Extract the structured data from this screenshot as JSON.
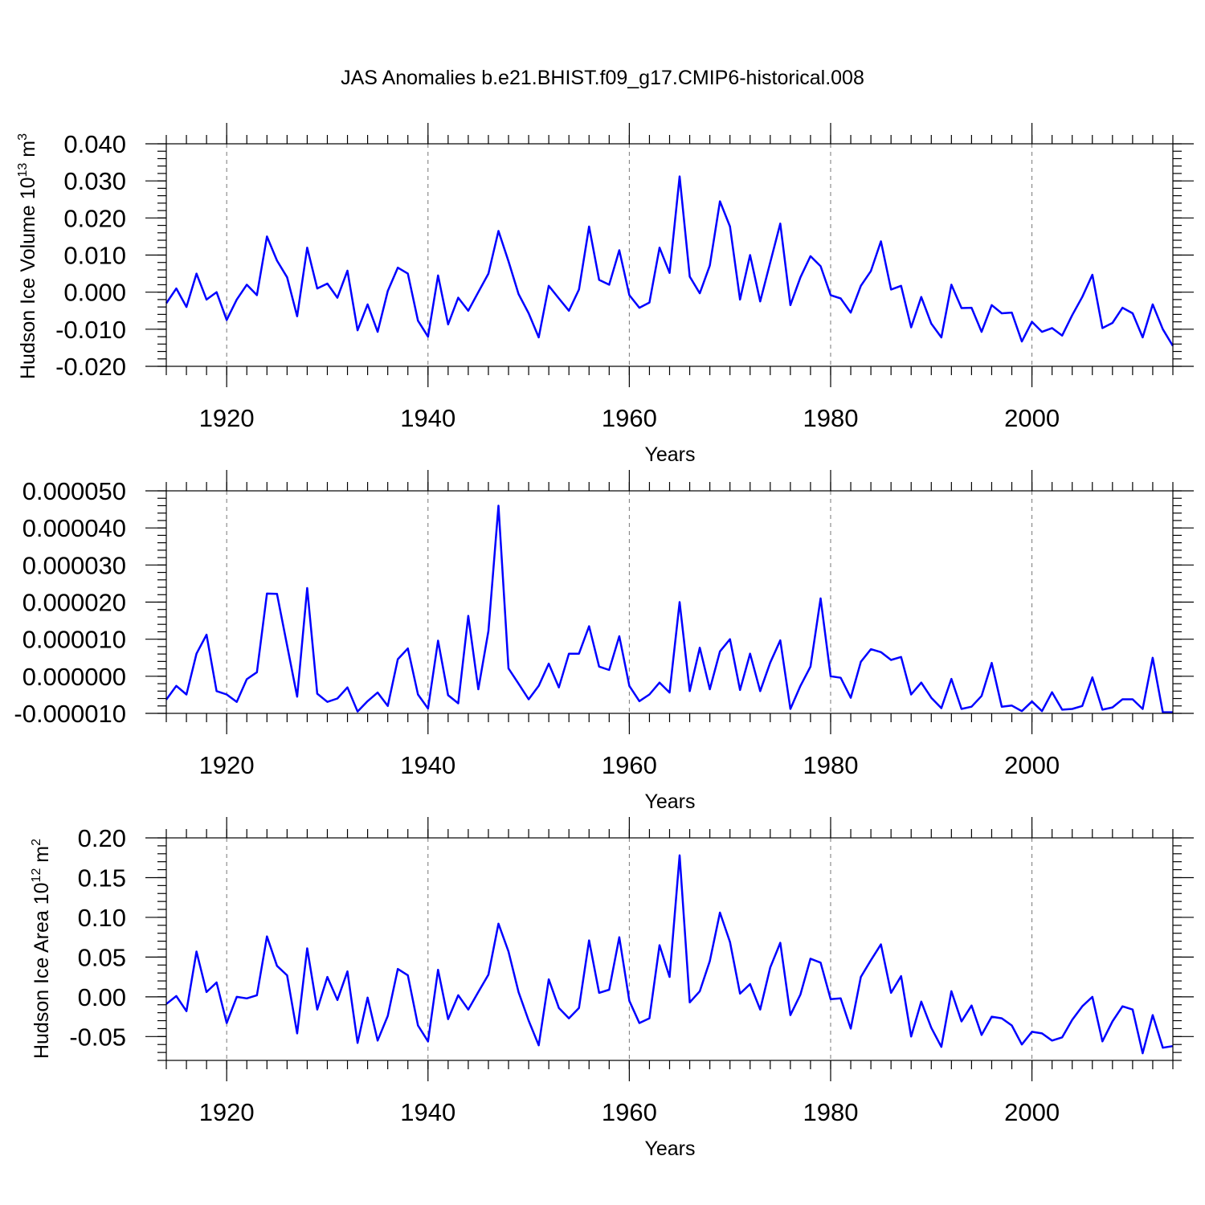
{
  "chart_data": [
    {
      "type": "line",
      "title": "JAS Anomalies b.e21.BHIST.f09_g17.CMIP6-historical.008",
      "ylabel": "Hudson Ice Volume 10",
      "ylabel_exp": "13",
      "ylabel_unit": " m",
      "ylabel_unit_exp": "3",
      "xlabel": "Years",
      "xlim": [
        1914,
        2014
      ],
      "ylim": [
        -0.02,
        0.04
      ],
      "yticks": [
        -0.02,
        -0.01,
        0.0,
        0.01,
        0.02,
        0.03,
        0.04
      ],
      "ytick_labels": [
        "-0.020",
        "-0.010",
        "0.000",
        "0.010",
        "0.020",
        "0.030",
        "0.040"
      ],
      "xticks": [
        1920,
        1940,
        1960,
        1980,
        2000
      ],
      "xtick_labels": [
        "1920",
        "1940",
        "1960",
        "1980",
        "2000"
      ],
      "grid": "dashed vertical at major x ticks",
      "color": "#0000ff",
      "series": [
        {
          "name": "Hudson Ice Volume",
          "x_start": 1914,
          "values": [
            -0.003,
            0.001,
            -0.004,
            0.005,
            -0.002,
            0.0,
            -0.0075,
            -0.002,
            0.002,
            -0.0008,
            0.015,
            0.0085,
            0.004,
            -0.0065,
            0.012,
            0.001,
            0.0023,
            -0.0015,
            0.0058,
            -0.0103,
            -0.0033,
            -0.0107,
            0.0003,
            0.0066,
            0.005,
            -0.0077,
            -0.012,
            0.0045,
            -0.0087,
            -0.0015,
            -0.005,
            0.0,
            0.005,
            0.0165,
            0.0083,
            -0.0005,
            -0.0057,
            -0.0122,
            0.0017,
            -0.0017,
            -0.005,
            0.0007,
            0.0177,
            0.0033,
            0.002,
            0.0113,
            -0.0008,
            -0.0042,
            -0.0028,
            0.012,
            0.0052,
            0.0312,
            0.0042,
            -0.0003,
            0.0072,
            0.0245,
            0.0177,
            -0.002,
            0.01,
            -0.0025,
            0.008,
            0.0185,
            -0.0035,
            0.004,
            0.0097,
            0.007,
            -0.0008,
            -0.0017,
            -0.0055,
            0.0017,
            0.0057,
            0.0137,
            0.0007,
            0.0017,
            -0.0095,
            -0.0013,
            -0.0085,
            -0.0122,
            0.002,
            -0.0043,
            -0.0042,
            -0.0107,
            -0.0035,
            -0.0057,
            -0.0055,
            -0.0133,
            -0.008,
            -0.0107,
            -0.0097,
            -0.0117,
            -0.0062,
            -0.0013,
            0.0047,
            -0.0097,
            -0.0083,
            -0.0042,
            -0.0057,
            -0.0122,
            -0.0033,
            -0.01,
            -0.0145
          ]
        }
      ]
    },
    {
      "type": "line",
      "ylabel": "",
      "xlabel": "Years",
      "xlim": [
        1914,
        2014
      ],
      "ylim": [
        -1e-05,
        5e-05
      ],
      "yticks": [
        -1e-05,
        0.0,
        1e-05,
        2e-05,
        3e-05,
        4e-05,
        5e-05
      ],
      "ytick_labels": [
        "-0.000010",
        "0.000000",
        "0.000010",
        "0.000020",
        "0.000030",
        "0.000040",
        "0.000050"
      ],
      "xticks": [
        1920,
        1940,
        1960,
        1980,
        2000
      ],
      "xtick_labels": [
        "1920",
        "1940",
        "1960",
        "1980",
        "2000"
      ],
      "grid": "dashed vertical at major x ticks",
      "color": "#0000ff",
      "series": [
        {
          "name": "anomaly",
          "x_start": 1914,
          "values": [
            -6.3e-06,
            -2.6e-06,
            -4.9e-06,
            6.1e-06,
            1.12e-05,
            -4e-06,
            -4.9e-06,
            -6.9e-06,
            -8e-07,
            1.1e-06,
            2.23e-05,
            2.22e-05,
            8.3e-06,
            -5.5e-06,
            2.38e-05,
            -4.7e-06,
            -6.9e-06,
            -6e-06,
            -3e-06,
            -9.5e-06,
            -6.7e-06,
            -4.4e-06,
            -8e-06,
            4.6e-06,
            7.5e-06,
            -4.9e-06,
            -8.7e-06,
            9.6e-06,
            -5.1e-06,
            -7.3e-06,
            1.63e-05,
            -3.5e-06,
            1.22e-05,
            4.6e-05,
            2.1e-06,
            -2e-06,
            -6.2e-06,
            -2.6e-06,
            3.4e-06,
            -3e-06,
            6.1e-06,
            6.1e-06,
            1.35e-05,
            2.6e-06,
            1.7e-06,
            1.08e-05,
            -2.6e-06,
            -6.7e-06,
            -4.9e-06,
            -1.7e-06,
            -4.4e-06,
            2e-05,
            -4e-06,
            7.7e-06,
            -3.5e-06,
            6.7e-06,
            1e-05,
            -3.7e-06,
            6.1e-06,
            -4e-06,
            3.7e-06,
            9.7e-06,
            -8.8e-06,
            -2.6e-06,
            2.6e-06,
            2.1e-05,
            0.0,
            -4e-07,
            -5.8e-06,
            3.9e-06,
            7.3e-06,
            6.5e-06,
            4.4e-06,
            5.2e-06,
            -4.9e-06,
            -1.7e-06,
            -5.8e-06,
            -8.6e-06,
            -7e-07,
            -8.8e-06,
            -8.2e-06,
            -5.3e-06,
            3.6e-06,
            -8.2e-06,
            -7.9e-06,
            -9.4e-06,
            -6.8e-06,
            -9.4e-06,
            -4.3e-06,
            -9e-06,
            -8.8e-06,
            -8e-06,
            -3e-07,
            -9e-06,
            -8.4e-06,
            -6.2e-06,
            -6.2e-06,
            -8.8e-06,
            5e-06,
            -9.7e-06,
            -9.7e-06
          ]
        }
      ]
    },
    {
      "type": "line",
      "ylabel": "Hudson Ice Area 10",
      "ylabel_exp": "12",
      "ylabel_unit": " m",
      "ylabel_unit_exp": "2",
      "xlabel": "Years",
      "xlim": [
        1914,
        2014
      ],
      "ylim": [
        -0.08,
        0.2
      ],
      "yticks": [
        -0.05,
        0.0,
        0.05,
        0.1,
        0.15,
        0.2
      ],
      "ytick_labels": [
        "-0.05",
        "0.00",
        "0.05",
        "0.10",
        "0.15",
        "0.20"
      ],
      "xticks": [
        1920,
        1940,
        1960,
        1980,
        2000
      ],
      "xtick_labels": [
        "1920",
        "1940",
        "1960",
        "1980",
        "2000"
      ],
      "grid": "dashed vertical at major x ticks",
      "color": "#0000ff",
      "series": [
        {
          "name": "Hudson Ice Area",
          "x_start": 1914,
          "values": [
            -0.009,
            0.001,
            -0.018,
            0.057,
            0.006,
            0.018,
            -0.033,
            0.0,
            -0.002,
            0.002,
            0.076,
            0.039,
            0.027,
            -0.046,
            0.061,
            -0.016,
            0.025,
            -0.004,
            0.032,
            -0.058,
            -0.001,
            -0.055,
            -0.024,
            0.035,
            0.027,
            -0.036,
            -0.056,
            0.034,
            -0.028,
            0.002,
            -0.016,
            0.006,
            0.028,
            0.092,
            0.057,
            0.006,
            -0.03,
            -0.061,
            0.022,
            -0.014,
            -0.027,
            -0.014,
            0.071,
            0.005,
            0.009,
            0.075,
            -0.005,
            -0.033,
            -0.027,
            0.065,
            0.025,
            0.178,
            -0.007,
            0.007,
            0.045,
            0.106,
            0.069,
            0.004,
            0.016,
            -0.016,
            0.037,
            0.068,
            -0.023,
            0.003,
            0.048,
            0.043,
            -0.003,
            -0.002,
            -0.04,
            0.025,
            0.046,
            0.066,
            0.005,
            0.026,
            -0.05,
            -0.006,
            -0.039,
            -0.063,
            0.007,
            -0.031,
            -0.011,
            -0.048,
            -0.025,
            -0.027,
            -0.036,
            -0.06,
            -0.044,
            -0.046,
            -0.055,
            -0.051,
            -0.029,
            -0.012,
            0.0,
            -0.056,
            -0.031,
            -0.012,
            -0.016,
            -0.071,
            -0.023,
            -0.064,
            -0.062
          ]
        }
      ]
    }
  ]
}
